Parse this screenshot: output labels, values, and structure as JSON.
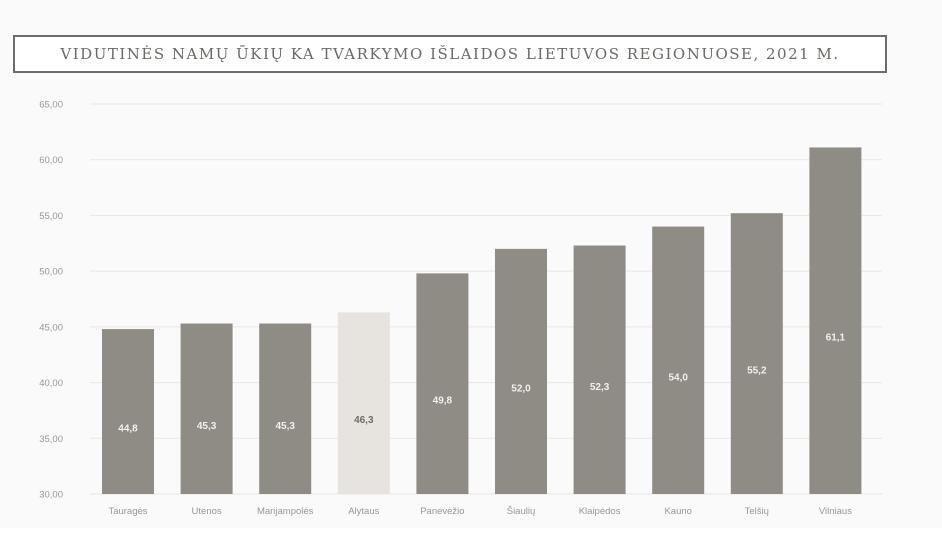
{
  "chart_data": {
    "type": "bar",
    "title": "VIDUTINĖS NAMŲ ŪKIŲ KA TVARKYMO IŠLAIDOS LIETUVOS REGIONUOSE, 2021 M.",
    "ylabel": "",
    "xlabel": "",
    "categories": [
      "Tauragės",
      "Utenos",
      "Marijampolės",
      "Alytaus",
      "Panevėžio",
      "Šiaulių",
      "Klaipėdos",
      "Kauno",
      "Telšių",
      "Vilniaus"
    ],
    "values": [
      44.8,
      45.3,
      45.3,
      46.3,
      49.8,
      52.0,
      52.3,
      54.0,
      55.2,
      61.1
    ],
    "value_labels": [
      "44,8",
      "45,3",
      "45,3",
      "46,3",
      "49,8",
      "52,0",
      "52,3",
      "54,0",
      "55,2",
      "61,1"
    ],
    "ylim": [
      30,
      65
    ],
    "yticks": [
      "30,00",
      "35,00",
      "40,00",
      "45,00",
      "50,00",
      "55,00",
      "60,00",
      "65,00"
    ],
    "grid": true,
    "highlight_category": "Alytaus",
    "colors": {
      "bar": "#8f8b85",
      "highlight": "#e7e3de",
      "label_on_bar": "#f2f0ec",
      "label_on_highlight": "#6f6c68",
      "tick": "#9a9792",
      "grid": "#e9e7e4"
    }
  }
}
